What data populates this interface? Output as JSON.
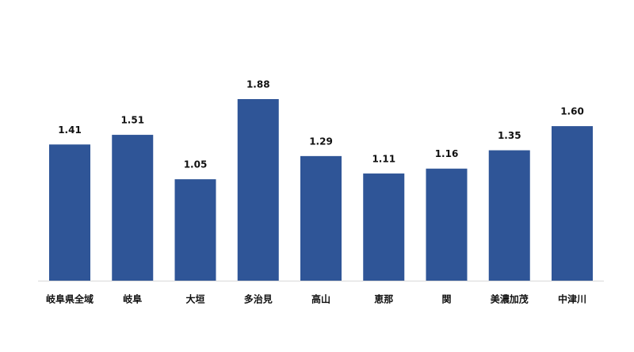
{
  "chart_data": {
    "type": "bar",
    "categories": [
      "岐阜県全域",
      "岐阜",
      "大垣",
      "多治見",
      "高山",
      "恵那",
      "関",
      "美濃加茂",
      "中津川"
    ],
    "values": [
      1.41,
      1.51,
      1.05,
      1.88,
      1.29,
      1.11,
      1.16,
      1.35,
      1.6
    ],
    "value_labels": [
      "1.41",
      "1.51",
      "1.05",
      "1.88",
      "1.29",
      "1.11",
      "1.16",
      "1.35",
      "1.60"
    ],
    "color": "#2f5597"
  }
}
